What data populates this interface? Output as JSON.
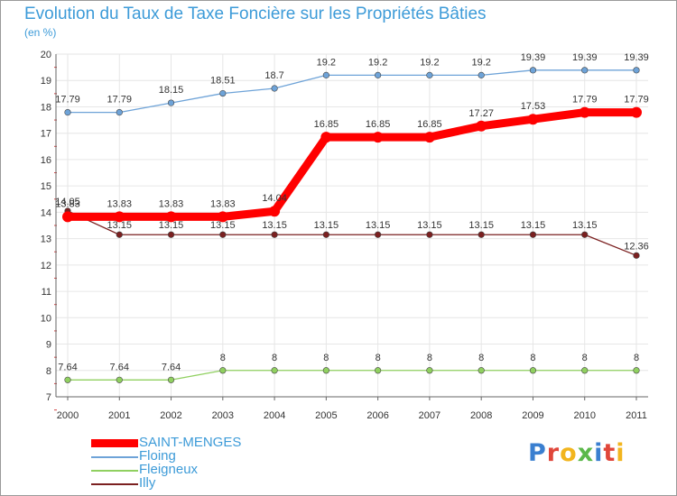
{
  "chart_data": {
    "type": "line",
    "title": "Evolution du Taux de Taxe Foncière sur les Propriétés Bâties",
    "subtitle": "(en %)",
    "xlabel": "",
    "ylabel": "",
    "ylim": [
      7,
      20
    ],
    "y_ticks": [
      "7",
      "8",
      "9",
      "10",
      "11",
      "12",
      "13",
      "14",
      "15",
      "16",
      "17",
      "18",
      "19",
      "20"
    ],
    "categories": [
      "2000",
      "2001",
      "2002",
      "2003",
      "2004",
      "2005",
      "2006",
      "2007",
      "2008",
      "2009",
      "2010",
      "2011"
    ],
    "series": [
      {
        "name": "SAINT-MENGES",
        "color": "#ff0000",
        "values": [
          13.83,
          13.83,
          13.83,
          13.83,
          14.04,
          16.85,
          16.85,
          16.85,
          17.27,
          17.53,
          17.79,
          17.79
        ],
        "labels": [
          "13.83",
          "13.83",
          "13.83",
          "13.83",
          "14.04",
          "16.85",
          "16.85",
          "16.85",
          "17.27",
          "17.53",
          "17.79",
          "17.79"
        ]
      },
      {
        "name": "Floing",
        "color": "#6ea3d8",
        "values": [
          17.79,
          17.79,
          18.15,
          18.51,
          18.7,
          19.2,
          19.2,
          19.2,
          19.2,
          19.39,
          19.39,
          19.39
        ],
        "labels": [
          "17.79",
          "17.79",
          "18.15",
          "18.51",
          "18.7",
          "19.2",
          "19.2",
          "19.2",
          "19.2",
          "19.39",
          "19.39",
          "19.39"
        ]
      },
      {
        "name": "Fleigneux",
        "color": "#90d060",
        "values": [
          7.64,
          7.64,
          7.64,
          8,
          8,
          8,
          8,
          8,
          8,
          8,
          8,
          8
        ],
        "labels": [
          "7.64",
          "7.64",
          "7.64",
          "8",
          "8",
          "8",
          "8",
          "8",
          "8",
          "8",
          "8",
          "8"
        ]
      },
      {
        "name": "Illy",
        "color": "#7b2020",
        "values": [
          14.05,
          13.15,
          13.15,
          13.15,
          13.15,
          13.15,
          13.15,
          13.15,
          13.15,
          13.15,
          13.15,
          12.36
        ],
        "labels": [
          "14.05",
          "13.15",
          "13.15",
          "13.15",
          "13.15",
          "13.15",
          "13.15",
          "13.15",
          "13.15",
          "13.15",
          "13.15",
          "12.36"
        ]
      }
    ]
  },
  "brand": {
    "logo_text": "Proxiti",
    "logo_letters": [
      "P",
      "r",
      "o",
      "x",
      "i",
      "t",
      "i"
    ],
    "logo_colors": [
      "#3a7fd0",
      "#e0463a",
      "#f2b51e",
      "#5bb84a",
      "#3a7fd0",
      "#e0463a",
      "#f2b51e"
    ]
  }
}
